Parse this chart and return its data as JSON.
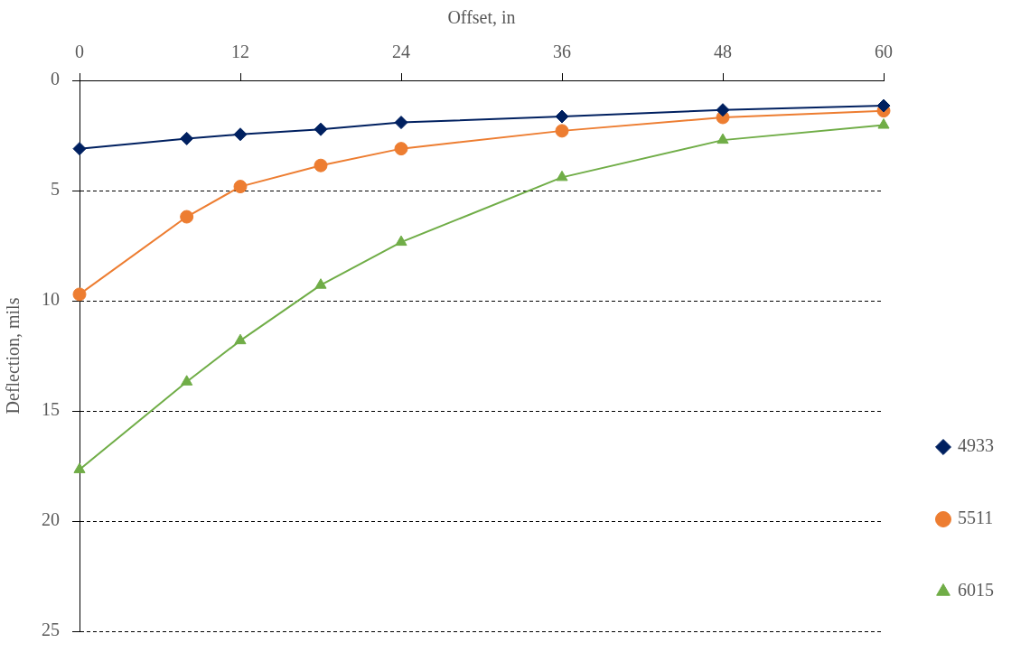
{
  "chart_data": {
    "type": "line",
    "xlabel": "Offset, in",
    "ylabel": "Deflection, mils",
    "x": [
      0,
      8,
      12,
      18,
      24,
      36,
      48,
      60
    ],
    "xlim": [
      0,
      60
    ],
    "xticks": [
      0,
      12,
      24,
      36,
      48,
      60
    ],
    "ylim": [
      25,
      0
    ],
    "yticks": [
      0,
      5,
      10,
      15,
      20,
      25
    ],
    "grid": "y",
    "line_style": "solid",
    "legend": "bottom right",
    "series": [
      {
        "name": "4933",
        "color": "#002060",
        "marker": "diamond",
        "values": [
          3.1,
          2.64,
          2.45,
          2.22,
          1.91,
          1.64,
          1.34,
          1.15
        ]
      },
      {
        "name": "5511",
        "color": "#ed7d31",
        "marker": "circle",
        "values": [
          9.71,
          6.19,
          4.82,
          3.86,
          3.1,
          2.29,
          1.68,
          1.38
        ]
      },
      {
        "name": "6015",
        "color": "#70ad47",
        "marker": "triangle",
        "values": [
          17.66,
          13.68,
          11.81,
          9.29,
          7.34,
          4.4,
          2.71,
          2.03
        ]
      }
    ]
  }
}
